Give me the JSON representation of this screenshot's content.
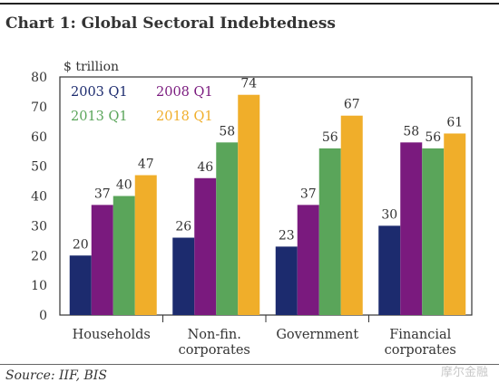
{
  "title": "Chart 1: Global Sectoral Indebtedness",
  "source": "Source: IIF, BIS",
  "watermark": "摩尔金融",
  "chart_data": {
    "type": "bar",
    "title": "Chart 1: Global Sectoral Indebtedness",
    "ylabel": "$ trillion",
    "ylim": [
      0,
      80
    ],
    "yticks": [
      0,
      10,
      20,
      30,
      40,
      50,
      60,
      70,
      80
    ],
    "grid": false,
    "legend_position": "top-left",
    "categories": [
      [
        "Households"
      ],
      [
        "Non-fin.",
        "corporates"
      ],
      [
        "Government"
      ],
      [
        "Financial",
        "corporates"
      ]
    ],
    "series": [
      {
        "name": "2003 Q1",
        "color": "#1c2b6e",
        "values": [
          20,
          26,
          23,
          30
        ]
      },
      {
        "name": "2008 Q1",
        "color": "#7a1a7e",
        "values": [
          37,
          46,
          37,
          58
        ]
      },
      {
        "name": "2013 Q1",
        "color": "#5aa55a",
        "values": [
          40,
          58,
          56,
          56
        ]
      },
      {
        "name": "2018 Q1",
        "color": "#f0ae2a",
        "values": [
          47,
          74,
          67,
          61
        ]
      }
    ]
  }
}
